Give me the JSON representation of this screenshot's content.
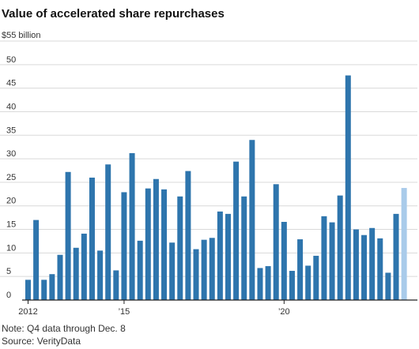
{
  "chart_data": {
    "type": "bar",
    "title": "Value of accelerated share repurchases",
    "unit_label": "$55 billion",
    "ylim": [
      0,
      55
    ],
    "yticks": [
      0,
      5,
      10,
      15,
      20,
      25,
      30,
      35,
      40,
      45,
      50
    ],
    "grid": true,
    "x_tick_labels": [
      {
        "index": 0,
        "label": "2012"
      },
      {
        "index": 12,
        "label": "’15"
      },
      {
        "index": 32,
        "label": "’20"
      }
    ],
    "categories": [
      "2012 Q1",
      "2012 Q2",
      "2012 Q3",
      "2012 Q4",
      "2013 Q1",
      "2013 Q2",
      "2013 Q3",
      "2013 Q4",
      "2014 Q1",
      "2014 Q2",
      "2014 Q3",
      "2014 Q4",
      "2015 Q1",
      "2015 Q2",
      "2015 Q3",
      "2015 Q4",
      "2016 Q1",
      "2016 Q2",
      "2016 Q3",
      "2016 Q4",
      "2017 Q1",
      "2017 Q2",
      "2017 Q3",
      "2017 Q4",
      "2018 Q1",
      "2018 Q2",
      "2018 Q3",
      "2018 Q4",
      "2019 Q1",
      "2019 Q2",
      "2019 Q3",
      "2019 Q4",
      "2020 Q1",
      "2020 Q2",
      "2020 Q3",
      "2020 Q4",
      "2021 Q1",
      "2021 Q2",
      "2021 Q3",
      "2021 Q4",
      "2022 Q1",
      "2022 Q2",
      "2022 Q3",
      "2022 Q4",
      "2023 Q1",
      "2023 Q2",
      "2023 Q3",
      "2023 Q4"
    ],
    "values": [
      4.3,
      17.0,
      4.3,
      5.5,
      9.6,
      27.2,
      11.1,
      14.1,
      26.0,
      10.5,
      28.8,
      6.3,
      22.9,
      31.2,
      12.6,
      23.7,
      25.7,
      23.5,
      12.2,
      22.0,
      27.4,
      10.8,
      12.8,
      13.2,
      18.8,
      18.3,
      29.4,
      22.0,
      34.0,
      6.8,
      7.2,
      24.6,
      16.6,
      6.2,
      12.9,
      7.3,
      9.4,
      17.8,
      16.5,
      22.2,
      47.7,
      15.0,
      13.8,
      15.3,
      13.1,
      5.8,
      18.3,
      23.8
    ],
    "highlight_last": true,
    "colors": {
      "bar": "#2e75ad",
      "highlight": "#a9cbea",
      "grid": "#d9d9d9",
      "axis": "#222222"
    }
  },
  "footer": {
    "note": "Note: Q4 data through Dec. 8",
    "source": "Source: VerityData"
  }
}
